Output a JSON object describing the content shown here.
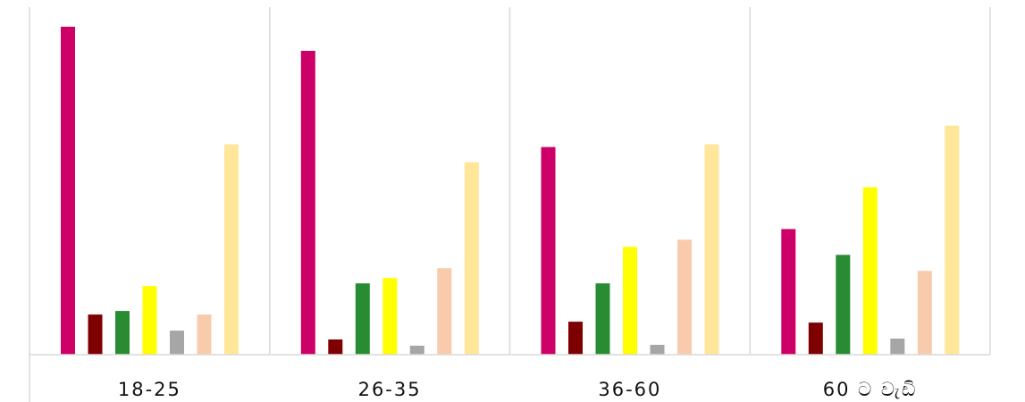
{
  "chart_data": {
    "type": "bar",
    "categories": [
      "18-25",
      "26-35",
      "36-60",
      "60 ට වැඩි"
    ],
    "series": [
      {
        "color": "#CC0066",
        "values": [
          368,
          341,
          233,
          141
        ]
      },
      {
        "color": "#7F0000",
        "values": [
          45,
          17,
          37,
          36
        ]
      },
      {
        "color": "#2A8C32",
        "values": [
          49,
          80,
          80,
          112
        ]
      },
      {
        "color": "#FFFF00",
        "values": [
          77,
          86,
          121,
          188
        ]
      },
      {
        "color": "#A6A6A6",
        "values": [
          27,
          10,
          11,
          18
        ]
      },
      {
        "color": "#F8CBAD",
        "values": [
          45,
          97,
          129,
          94
        ]
      },
      {
        "color": "#FFE699",
        "values": [
          236,
          216,
          236,
          257
        ]
      }
    ],
    "title": "",
    "xlabel": "",
    "ylabel": "",
    "ylim": [
      0,
      390
    ],
    "grid": "vertical category separators",
    "legend": "none"
  }
}
